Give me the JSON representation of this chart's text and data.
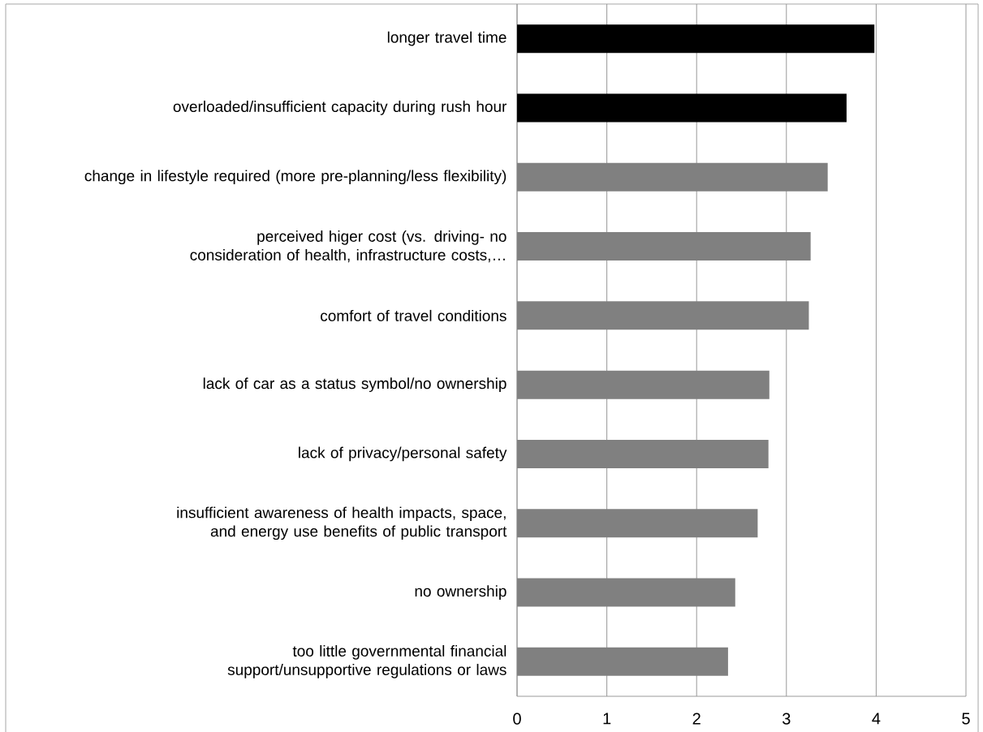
{
  "chart_data": {
    "type": "bar",
    "orientation": "horizontal",
    "categories": [
      "longer travel time",
      "overloaded/insufficient capacity during rush hour",
      "change in lifestyle required (more pre-planning/less flexibility)",
      "perceived higer cost (vs. driving- no consideration of health, infrastructure costs,…",
      "comfort of travel conditions",
      "lack of car as a status symbol/no ownership",
      "lack of privacy/personal safety",
      "insufficient awareness of health impacts, space, and energy use benefits of public transport",
      "no ownership",
      "too little governmental financial support/unsupportive regulations or laws"
    ],
    "values": [
      3.98,
      3.67,
      3.46,
      3.27,
      3.25,
      2.81,
      2.8,
      2.68,
      2.43,
      2.35
    ],
    "colors": [
      "#000000",
      "#000000",
      "#808080",
      "#808080",
      "#808080",
      "#808080",
      "#808080",
      "#808080",
      "#808080",
      "#808080"
    ],
    "xlim": [
      0,
      5
    ],
    "xticks": [
      0,
      1,
      2,
      3,
      4,
      5
    ],
    "grid": "x"
  }
}
